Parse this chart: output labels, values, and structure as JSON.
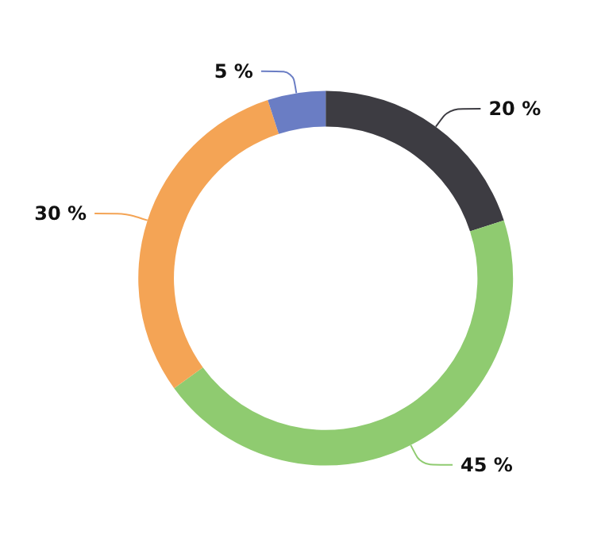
{
  "chart_data": {
    "type": "donut",
    "categories": [
      null,
      null,
      null,
      null
    ],
    "values": [
      20,
      45,
      30,
      5
    ],
    "colors": [
      "#3d3c42",
      "#8fcb70",
      "#f4a455",
      "#6a7dc4"
    ],
    "value_labels": [
      "20 %",
      "45 %",
      "30 %",
      "5 %"
    ]
  }
}
